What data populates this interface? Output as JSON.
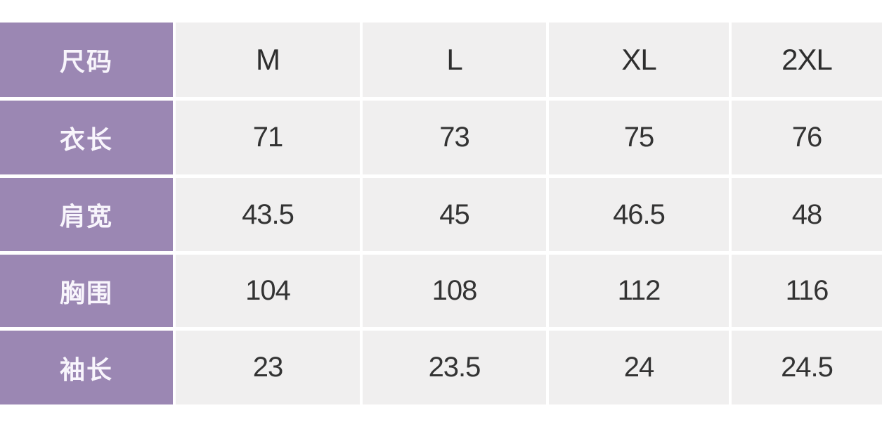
{
  "chart_data": {
    "type": "table",
    "header_label": "尺码",
    "columns": [
      "M",
      "L",
      "XL",
      "2XL"
    ],
    "rows": [
      {
        "label": "衣长",
        "values": [
          "71",
          "73",
          "75",
          "76"
        ]
      },
      {
        "label": "肩宽",
        "values": [
          "43.5",
          "45",
          "46.5",
          "48"
        ]
      },
      {
        "label": "胸围",
        "values": [
          "104",
          "108",
          "112",
          "116"
        ]
      },
      {
        "label": "袖长",
        "values": [
          "23",
          "23.5",
          "24",
          "24.5"
        ]
      }
    ],
    "layout": {
      "label_column_position": "left",
      "grid": "cells separated by white gaps, no borders"
    }
  },
  "colors": {
    "label_column_bg": "#9b87b3",
    "value_cell_bg": "#f0efef",
    "gap_color": "#ffffff",
    "label_text": "#f8f5fc",
    "value_text": "#333333",
    "header_text": "#2e2e2e"
  }
}
